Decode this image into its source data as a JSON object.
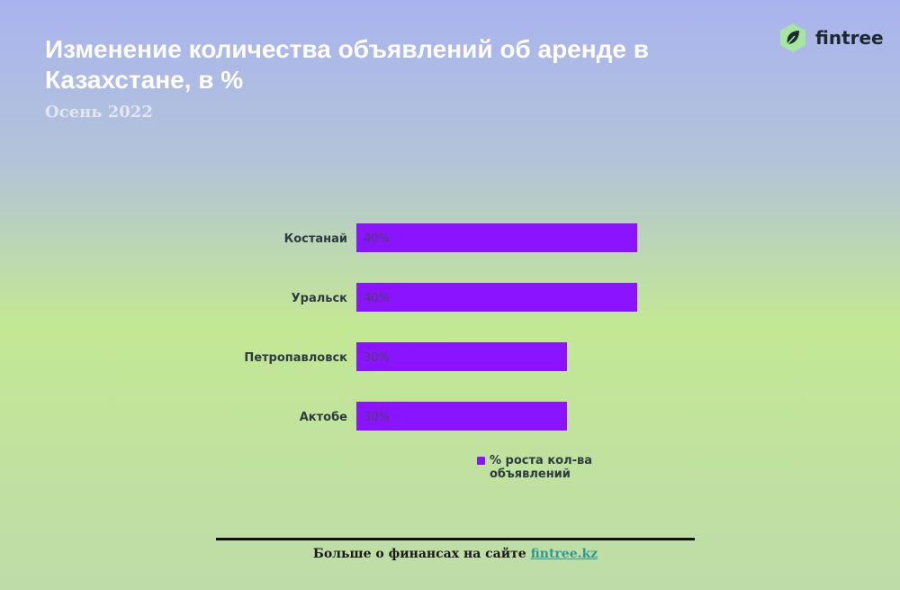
{
  "header": {
    "title": "Изменение количества объявлений об аренде в Казахстане, в %",
    "subtitle": "Осень 2022"
  },
  "brand": {
    "name": "fintree",
    "icon": "leaf-icon",
    "accent": "#a5e6a0"
  },
  "footer": {
    "text": "Больше о финансах на сайте ",
    "link": "fintree.kz"
  },
  "chart_data": {
    "type": "bar",
    "orientation": "horizontal",
    "categories": [
      "Костанай",
      "Уральск",
      "Петропавловск",
      "Актобе"
    ],
    "series": [
      {
        "name": "% роста кол-ва объявлений",
        "values": [
          40,
          40,
          30,
          30
        ],
        "labels": [
          "40%",
          "40%",
          "30%",
          "30%"
        ],
        "color": "#8a14ff"
      }
    ],
    "xlim": [
      0,
      40
    ],
    "grid": false,
    "legend_position": "bottom"
  }
}
